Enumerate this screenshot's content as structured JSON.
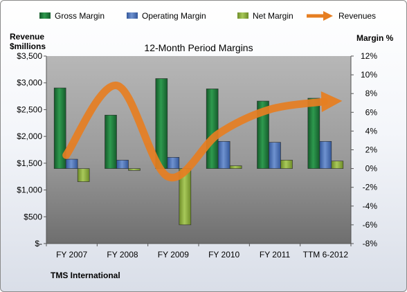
{
  "chart_data": {
    "type": "bar",
    "title": "12-Month Period Margins",
    "company": "TMS International",
    "left_axis_label_line1": "Revenue",
    "left_axis_label_line2": "$millions",
    "right_axis_label": "Margin %",
    "categories": [
      "FY 2007",
      "FY 2008",
      "FY 2009",
      "FY 2010",
      "FY 2011",
      "TTM 6-2012"
    ],
    "left_ticks": [
      "$-",
      "$500",
      "$1,000",
      "$1,500",
      "$2,000",
      "$2,500",
      "$3,000",
      "$3,500"
    ],
    "right_ticks": [
      "-8%",
      "-6%",
      "-4%",
      "-2%",
      "0%",
      "2%",
      "4%",
      "6%",
      "8%",
      "10%",
      "12%"
    ],
    "left_ylim": [
      0,
      3500
    ],
    "right_ylim": [
      -8,
      12
    ],
    "legend_position": "top",
    "grid": false,
    "series": [
      {
        "name": "Gross Margin",
        "kind": "bar",
        "axis": "right",
        "color": "#1f7a3a",
        "values": [
          8.6,
          5.7,
          9.6,
          8.5,
          7.2,
          7.5
        ]
      },
      {
        "name": "Operating Margin",
        "kind": "bar",
        "axis": "right",
        "color": "#4f74b8",
        "values": [
          1.0,
          0.9,
          1.2,
          2.9,
          2.8,
          2.9
        ]
      },
      {
        "name": "Net Margin",
        "kind": "bar",
        "axis": "right",
        "color": "#8fb33a",
        "values": [
          -1.4,
          -0.2,
          -6.0,
          0.3,
          0.9,
          0.8
        ]
      },
      {
        "name": "Revenues",
        "kind": "line",
        "axis": "left",
        "color": "#e67e22",
        "values": [
          1650,
          2950,
          1250,
          2050,
          2500,
          2650
        ]
      }
    ]
  }
}
